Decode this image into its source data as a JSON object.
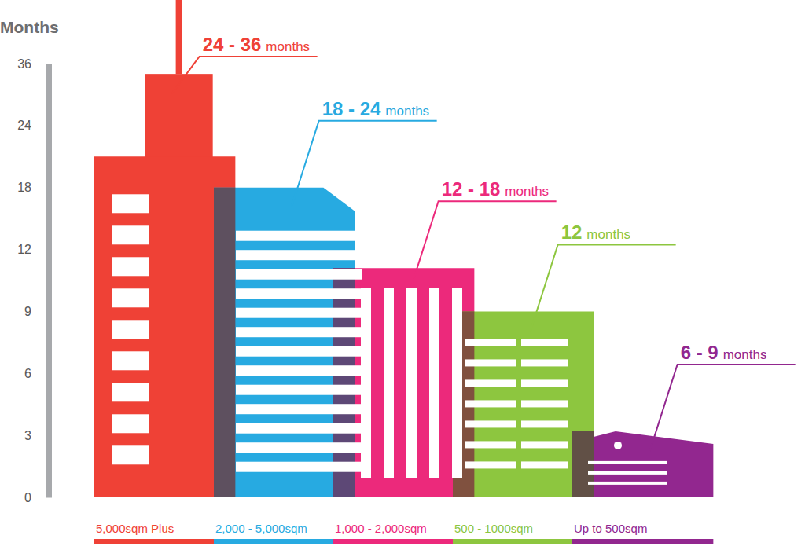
{
  "chart_data": {
    "type": "bar",
    "y_label": "Months",
    "categories": [
      "5,000sqm Plus",
      "2,000 - 5,000sqm",
      "1,000 - 2,000sqm",
      "500 - 1000sqm",
      "Up to 500sqm"
    ],
    "values": [
      21,
      18,
      11.1,
      9,
      3.2
    ],
    "tower_values": [
      34,
      null,
      null,
      null,
      null
    ],
    "colors": [
      "#ef4136",
      "#27aae1",
      "#ec297b",
      "#8dc63f",
      "#92278f"
    ],
    "annotations": [
      {
        "text": "24 - 36",
        "unit": "months"
      },
      {
        "text": "18 - 24",
        "unit": "months"
      },
      {
        "text": "12 - 18",
        "unit": "months"
      },
      {
        "text": "12",
        "unit": "months"
      },
      {
        "text": "6 - 9",
        "unit": "months"
      }
    ],
    "ylim": [
      0,
      36
    ],
    "yticks": [
      0,
      3,
      6,
      9,
      12,
      18,
      24,
      36
    ],
    "grid": false
  }
}
